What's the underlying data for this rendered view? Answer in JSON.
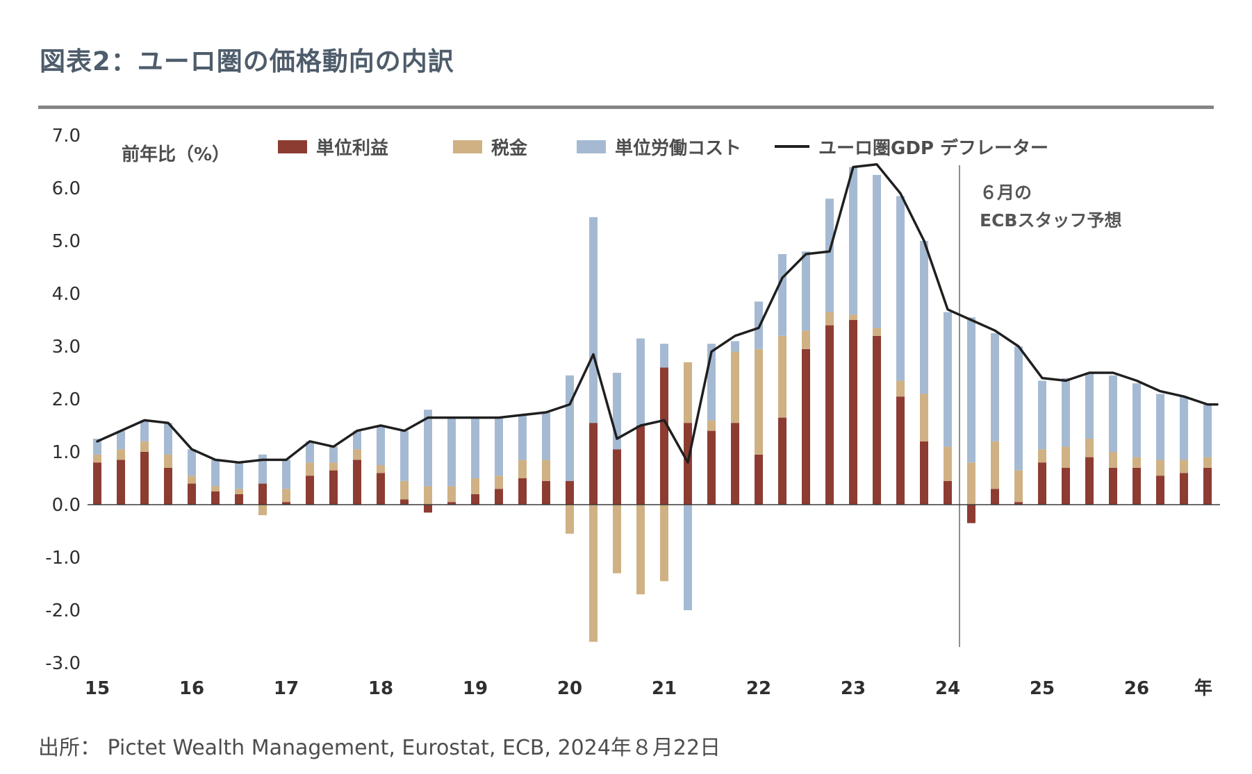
{
  "header": {
    "title": "図表2：ユーロ圏の価格動向の内訳"
  },
  "source": "出所： Pictet Wealth Management, Eurostat, ECB, 2024年８月22日",
  "chart_data": {
    "type": "bar",
    "subtype": "stacked-quarterly-bars-with-line-overlay",
    "title": "図表2：ユーロ圏の価格動向の内訳",
    "axis_label": "前年比（%）",
    "ylim": [
      -3.0,
      7.0
    ],
    "grid": false,
    "legend_position": "top",
    "y_ticks": [
      7.0,
      6.0,
      5.0,
      4.0,
      3.0,
      2.0,
      1.0,
      0.0,
      -1.0,
      -2.0,
      -3.0
    ],
    "x_year_labels": [
      "15",
      "16",
      "17",
      "18",
      "19",
      "20",
      "21",
      "22",
      "23",
      "24",
      "25",
      "26"
    ],
    "x_axis_suffix": "年",
    "quarters": [
      "15Q1",
      "15Q2",
      "15Q3",
      "15Q4",
      "16Q1",
      "16Q2",
      "16Q3",
      "16Q4",
      "17Q1",
      "17Q2",
      "17Q3",
      "17Q4",
      "18Q1",
      "18Q2",
      "18Q3",
      "18Q4",
      "19Q1",
      "19Q2",
      "19Q3",
      "19Q4",
      "20Q1",
      "20Q2",
      "20Q3",
      "20Q4",
      "21Q1",
      "21Q2",
      "21Q3",
      "21Q4",
      "22Q1",
      "22Q2",
      "22Q3",
      "22Q4",
      "23Q1",
      "23Q2",
      "23Q3",
      "23Q4",
      "24Q1",
      "24Q2",
      "24Q3",
      "24Q4",
      "25Q1",
      "25Q2",
      "25Q3",
      "25Q4",
      "26Q1",
      "26Q2",
      "26Q3",
      "26Q4"
    ],
    "series": [
      {
        "name": "単位利益",
        "color": "#8d3c32",
        "values": [
          0.8,
          0.85,
          1.0,
          0.7,
          0.4,
          0.25,
          0.2,
          0.4,
          0.05,
          0.55,
          0.65,
          0.85,
          0.6,
          0.1,
          -0.15,
          0.05,
          0.2,
          0.3,
          0.5,
          0.45,
          0.45,
          1.55,
          1.05,
          1.5,
          2.6,
          1.55,
          1.4,
          1.55,
          0.95,
          1.65,
          2.95,
          3.4,
          3.5,
          3.2,
          2.05,
          1.2,
          0.45,
          -0.35,
          0.3,
          0.05,
          0.8,
          0.7,
          0.9,
          0.7,
          0.7,
          0.55,
          0.6,
          0.7
        ]
      },
      {
        "name": "税金",
        "color": "#cfb184",
        "values": [
          0.15,
          0.2,
          0.2,
          0.25,
          0.15,
          0.1,
          0.1,
          -0.2,
          0.25,
          0.25,
          0.15,
          0.2,
          0.15,
          0.35,
          0.35,
          0.3,
          0.3,
          0.25,
          0.35,
          0.4,
          -0.55,
          -2.6,
          -1.3,
          -1.7,
          -1.45,
          1.15,
          0.2,
          1.35,
          2.0,
          1.55,
          0.35,
          0.25,
          0.1,
          0.15,
          0.3,
          0.9,
          0.65,
          0.8,
          0.9,
          0.6,
          0.25,
          0.4,
          0.35,
          0.3,
          0.2,
          0.3,
          0.25,
          0.2
        ]
      },
      {
        "name": "単位労働コスト",
        "color": "#a5bad2",
        "values": [
          0.3,
          0.35,
          0.4,
          0.6,
          0.5,
          0.5,
          0.5,
          0.55,
          0.55,
          0.4,
          0.3,
          0.35,
          0.75,
          0.95,
          1.45,
          1.3,
          1.15,
          1.1,
          0.85,
          0.9,
          2.0,
          3.9,
          1.45,
          1.65,
          0.45,
          -2.0,
          1.45,
          0.2,
          0.9,
          1.55,
          1.5,
          2.15,
          2.8,
          2.9,
          3.5,
          2.9,
          2.55,
          2.75,
          2.05,
          2.35,
          1.3,
          1.3,
          1.25,
          1.45,
          1.4,
          1.25,
          1.2,
          1.0
        ]
      }
    ],
    "line_series": {
      "name": "ユーロ圏GDP デフレーター",
      "color": "#1f1f1f",
      "values": [
        1.2,
        1.4,
        1.6,
        1.55,
        1.05,
        0.85,
        0.8,
        0.85,
        0.85,
        1.2,
        1.1,
        1.4,
        1.5,
        1.4,
        1.65,
        1.65,
        1.65,
        1.65,
        1.7,
        1.75,
        1.9,
        2.85,
        1.25,
        1.5,
        1.6,
        0.8,
        2.9,
        3.2,
        3.35,
        4.3,
        4.75,
        4.8,
        6.4,
        6.45,
        5.9,
        5.0,
        3.7,
        3.5,
        3.3,
        3.0,
        2.4,
        2.35,
        2.5,
        2.5,
        2.35,
        2.15,
        2.05,
        1.9
      ]
    },
    "forecast": {
      "label_line1": "６月の",
      "label_line2": "ECBスタッフ予想",
      "divider_after_quarter": "24Q1"
    }
  }
}
